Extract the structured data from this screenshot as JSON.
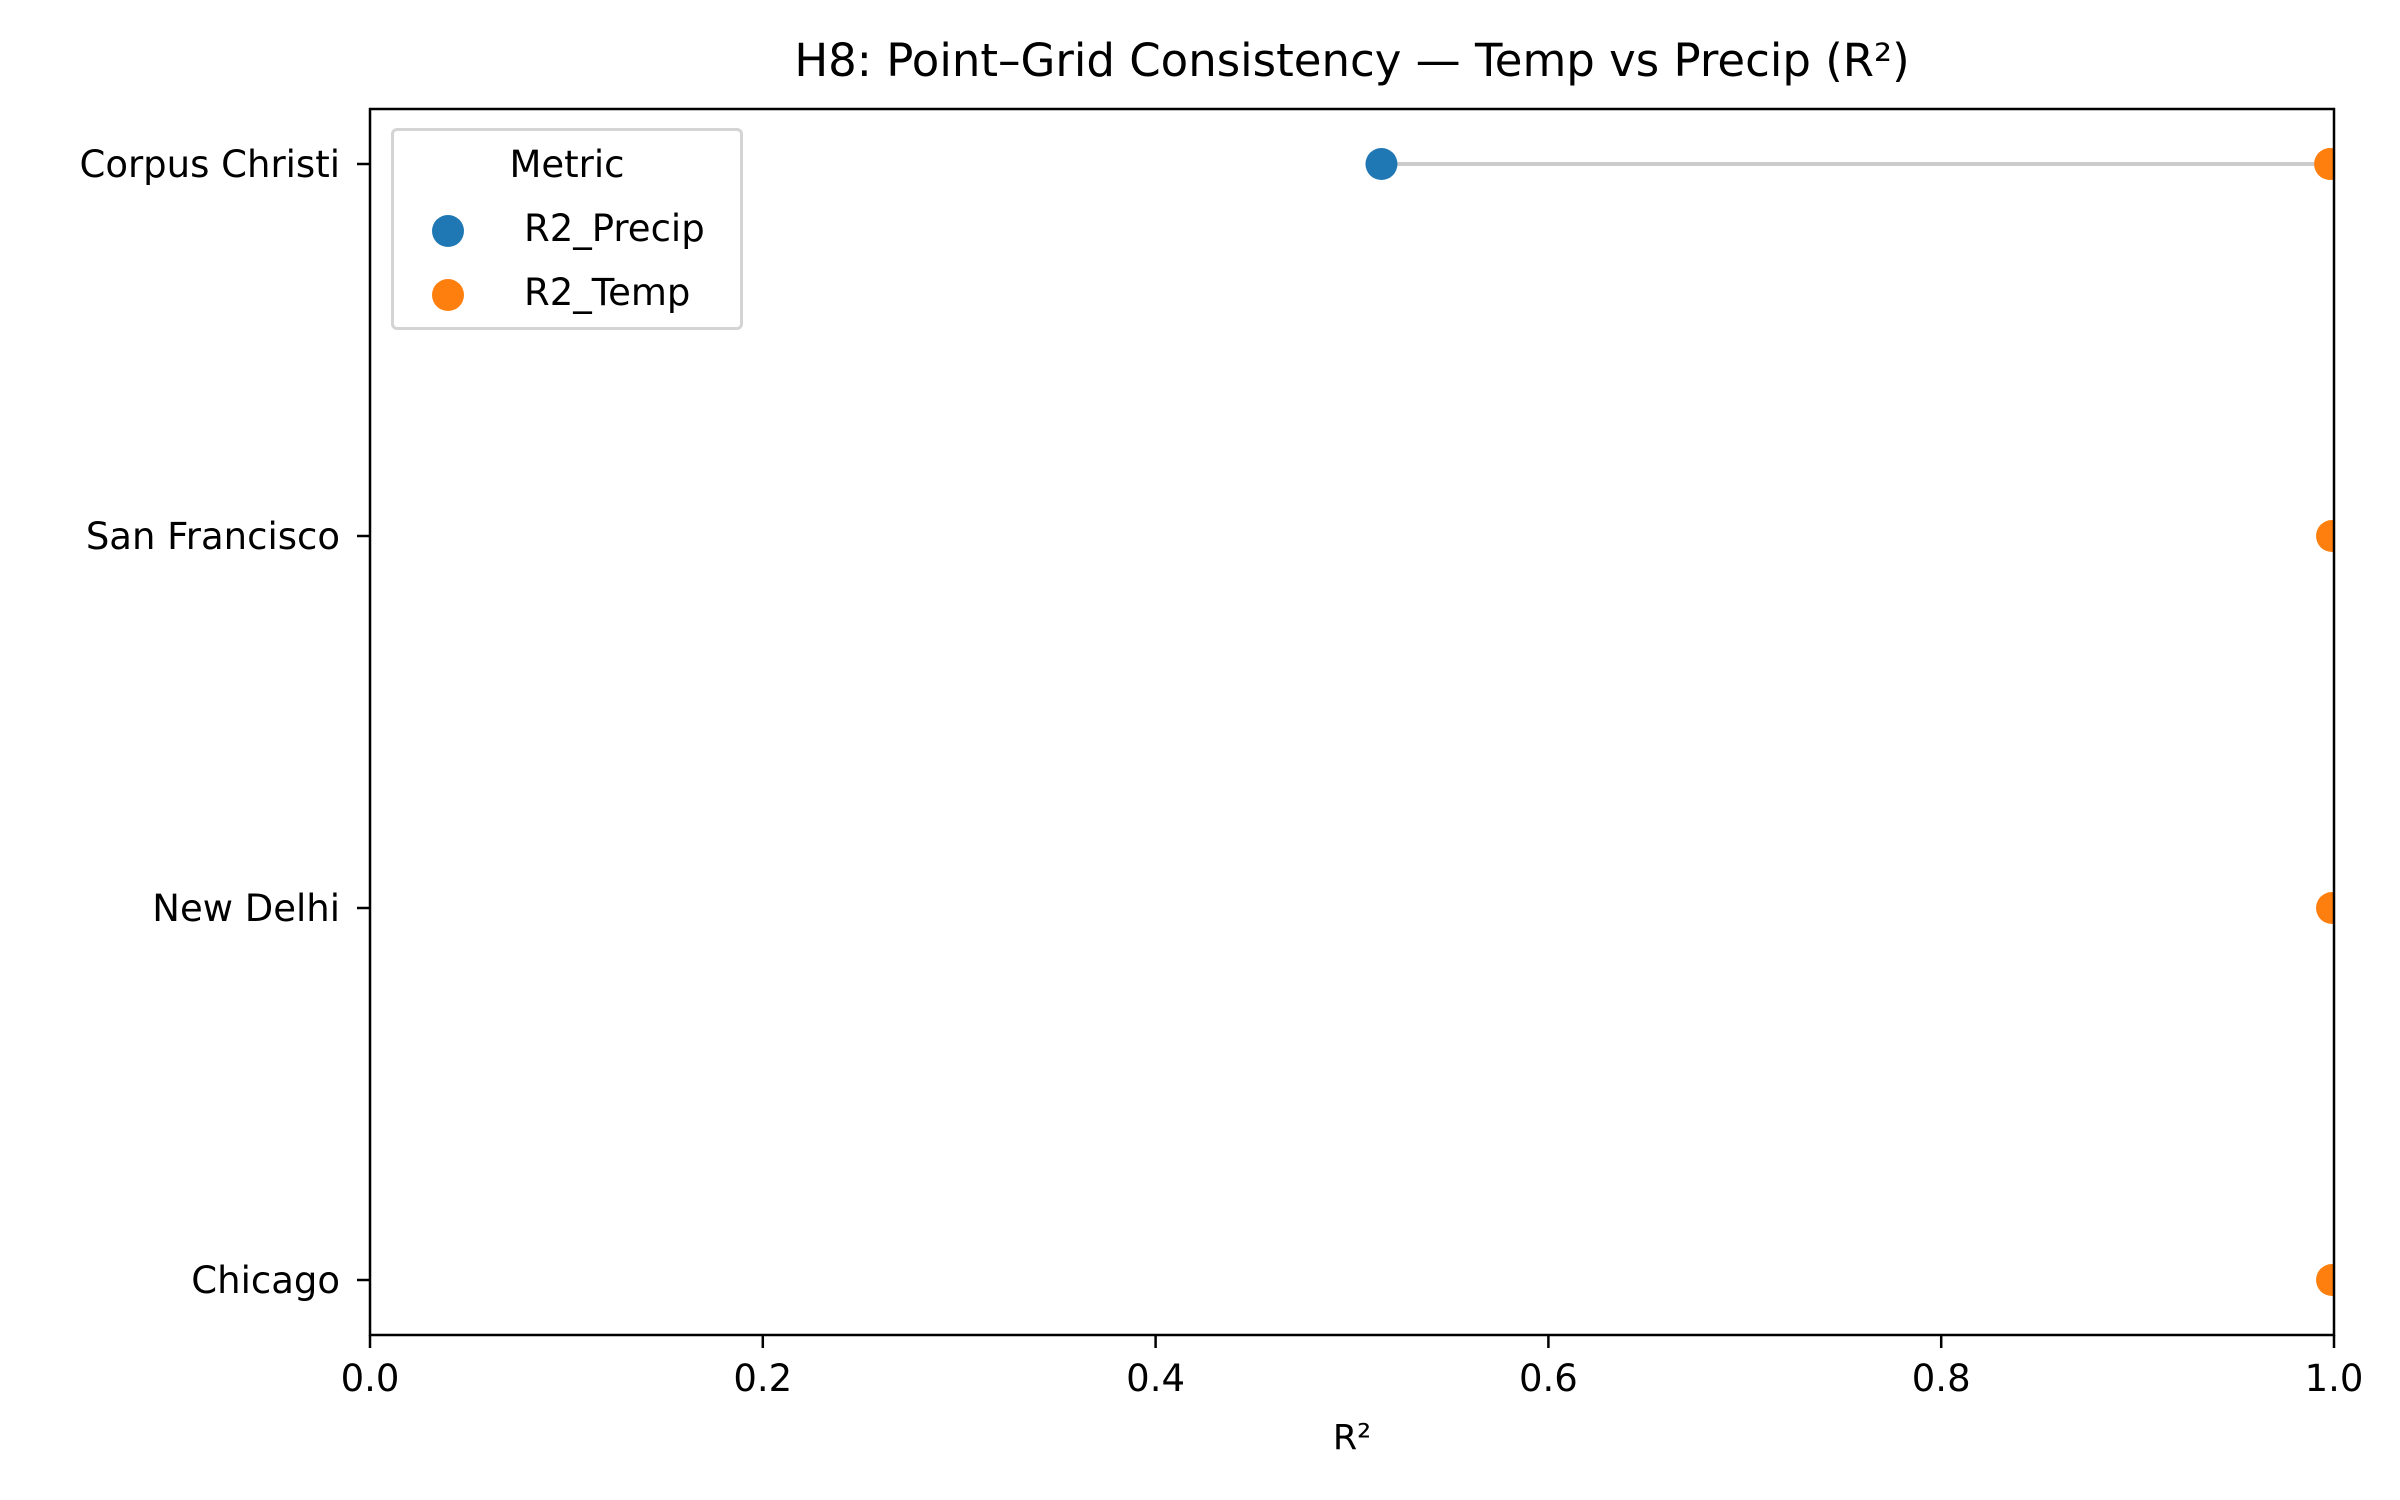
{
  "chart_data": {
    "type": "dumbbell",
    "title": "H8: Point–Grid Consistency — Temp vs Precip (R²)",
    "xlabel": "R²",
    "xlim": [
      0.0,
      1.0
    ],
    "xticks": [
      "0.0",
      "0.2",
      "0.4",
      "0.6",
      "0.8",
      "1.0"
    ],
    "categories": [
      "Corpus Christi",
      "San Francisco",
      "New Delhi",
      "Chicago"
    ],
    "series": [
      {
        "name": "R2_Precip",
        "color": "#1f77b4",
        "values": [
          0.515,
          null,
          null,
          null
        ]
      },
      {
        "name": "R2_Temp",
        "color": "#ff7f0e",
        "values": [
          0.998,
          0.999,
          0.999,
          0.999
        ]
      }
    ],
    "connector_color": "#cccccc",
    "legend": {
      "title": "Metric",
      "placement": "top-left"
    },
    "grid": false
  }
}
